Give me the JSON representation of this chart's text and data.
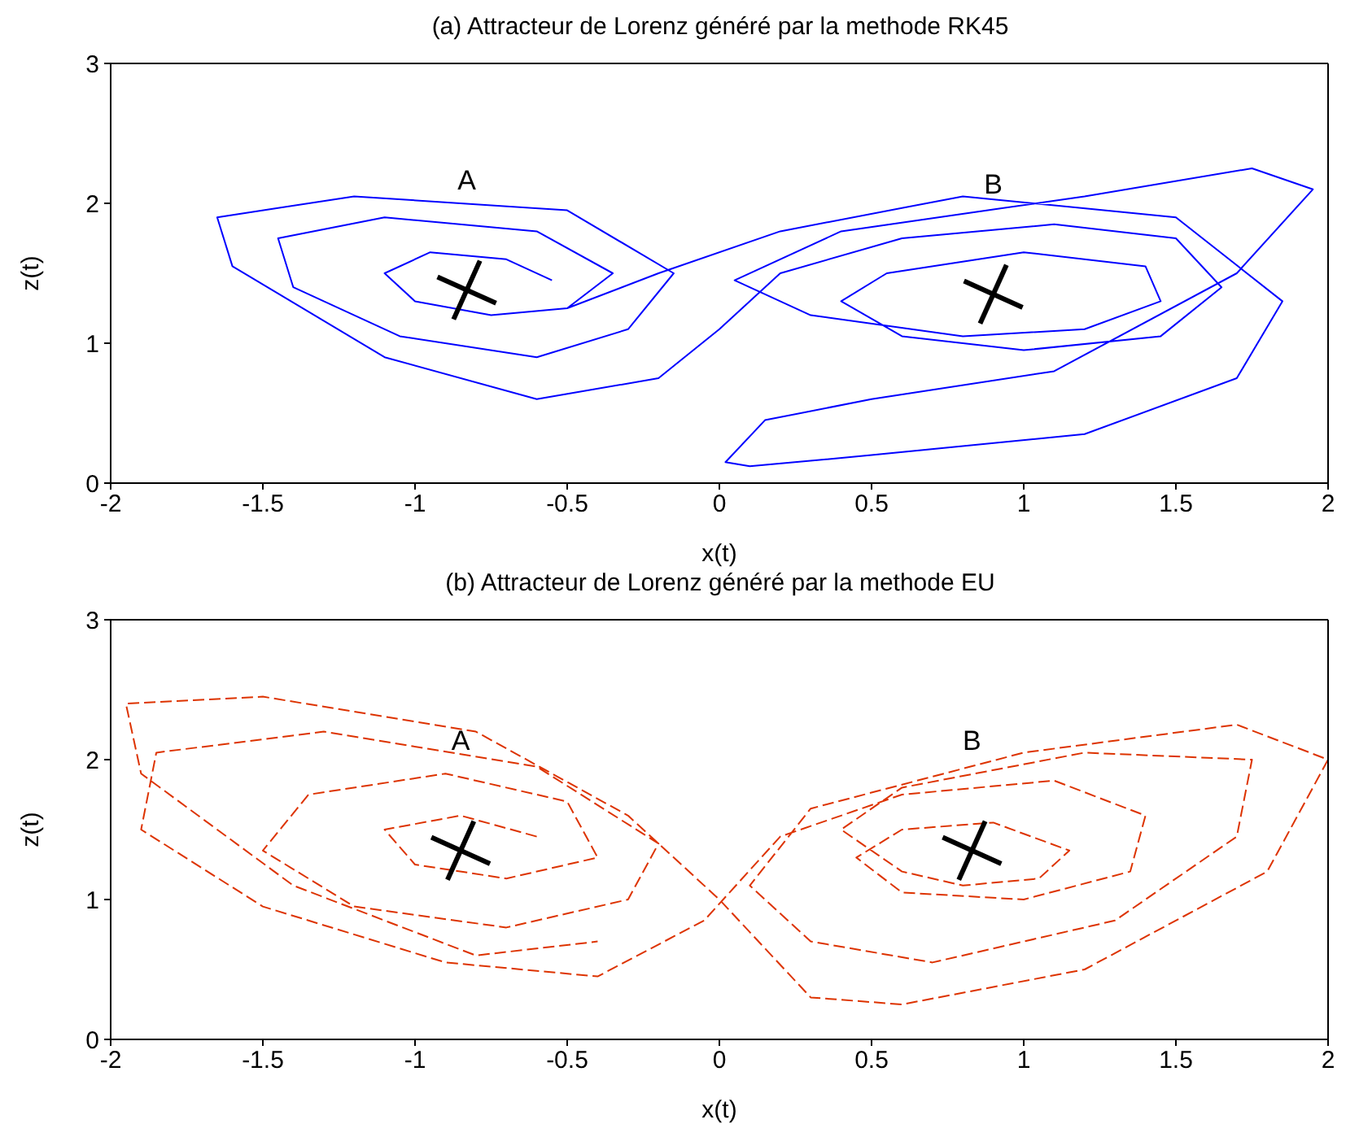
{
  "chart_data": [
    {
      "type": "line",
      "title": "(a) Attracteur de Lorenz généré par la methode RK45",
      "xlabel": "x(t)",
      "ylabel": "z(t)",
      "xlim": [
        -2,
        2
      ],
      "ylim": [
        0,
        3
      ],
      "xticks": [
        -2,
        -1.5,
        -1,
        -0.5,
        0,
        0.5,
        1,
        1.5,
        2
      ],
      "yticks": [
        0,
        1,
        2,
        3
      ],
      "series": [
        {
          "color": "#0000ff",
          "line_style": "solid",
          "x": [
            -0.55,
            -0.7,
            -0.95,
            -1.1,
            -1.0,
            -0.75,
            -0.5,
            -0.35,
            -0.6,
            -1.1,
            -1.45,
            -1.4,
            -1.05,
            -0.6,
            -0.3,
            -0.15,
            -0.5,
            -1.2,
            -1.65,
            -1.6,
            -1.1,
            -0.6,
            -0.2,
            0.0,
            0.2,
            0.6,
            1.1,
            1.5,
            1.65,
            1.45,
            1.0,
            0.6,
            0.4,
            0.55,
            1.0,
            1.4,
            1.45,
            1.2,
            0.8,
            0.3,
            0.05,
            0.4,
            1.2,
            1.75,
            1.95,
            1.7,
            1.1,
            0.5,
            0.15,
            0.02,
            0.1,
            0.5,
            1.2,
            1.7,
            1.85,
            1.5,
            0.8,
            0.2,
            -0.2,
            -0.5
          ],
          "values": [
            1.45,
            1.6,
            1.65,
            1.5,
            1.3,
            1.2,
            1.25,
            1.5,
            1.8,
            1.9,
            1.75,
            1.4,
            1.05,
            0.9,
            1.1,
            1.5,
            1.95,
            2.05,
            1.9,
            1.55,
            0.9,
            0.6,
            0.75,
            1.1,
            1.5,
            1.75,
            1.85,
            1.75,
            1.4,
            1.05,
            0.95,
            1.05,
            1.3,
            1.5,
            1.65,
            1.55,
            1.3,
            1.1,
            1.05,
            1.2,
            1.45,
            1.8,
            2.05,
            2.25,
            2.1,
            1.5,
            0.8,
            0.6,
            0.45,
            0.15,
            0.12,
            0.2,
            0.35,
            0.75,
            1.3,
            1.9,
            2.05,
            1.8,
            1.5,
            1.25
          ]
        },
        {
          "type": "scatter",
          "color": "#000000",
          "marker": "cross",
          "x": [
            -0.83,
            0.9
          ],
          "values": [
            1.38,
            1.35
          ]
        }
      ],
      "annotations": [
        "A",
        "B"
      ]
    },
    {
      "type": "line",
      "title": "(b) Attracteur de Lorenz généré par la methode EU",
      "xlabel": "x(t)",
      "ylabel": "z(t)",
      "xlim": [
        -2,
        2
      ],
      "ylim": [
        0,
        3
      ],
      "xticks": [
        -2,
        -1.5,
        -1,
        -0.5,
        0,
        0.5,
        1,
        1.5,
        2
      ],
      "yticks": [
        0,
        1,
        2,
        3
      ],
      "series": [
        {
          "color": "#dd3300",
          "line_style": "dashed",
          "x": [
            -0.6,
            -0.85,
            -1.1,
            -1.0,
            -0.7,
            -0.4,
            -0.5,
            -0.9,
            -1.35,
            -1.5,
            -1.2,
            -0.7,
            -0.3,
            -0.2,
            -0.6,
            -1.3,
            -1.85,
            -1.9,
            -1.5,
            -0.9,
            -0.4,
            -0.05,
            0.2,
            0.6,
            1.1,
            1.4,
            1.35,
            1.0,
            0.6,
            0.45,
            0.6,
            0.9,
            1.15,
            1.05,
            0.8,
            0.6,
            0.4,
            0.6,
            1.2,
            1.75,
            1.7,
            1.3,
            0.7,
            0.3,
            0.1,
            0.3,
            1.0,
            1.7,
            2.0,
            1.8,
            1.2,
            0.6,
            0.3,
            0.0,
            -0.3,
            -0.8,
            -1.5,
            -1.95,
            -1.9,
            -1.4,
            -0.8,
            -0.4
          ],
          "values": [
            1.45,
            1.6,
            1.5,
            1.25,
            1.15,
            1.3,
            1.7,
            1.9,
            1.75,
            1.35,
            0.95,
            0.8,
            1.0,
            1.4,
            1.95,
            2.2,
            2.05,
            1.5,
            0.95,
            0.55,
            0.45,
            0.85,
            1.45,
            1.75,
            1.85,
            1.6,
            1.2,
            1.0,
            1.05,
            1.3,
            1.5,
            1.55,
            1.35,
            1.15,
            1.1,
            1.2,
            1.5,
            1.8,
            2.05,
            2.0,
            1.45,
            0.85,
            0.55,
            0.7,
            1.1,
            1.65,
            2.05,
            2.25,
            2.0,
            1.2,
            0.5,
            0.25,
            0.3,
            1.0,
            1.6,
            2.2,
            2.45,
            2.4,
            1.9,
            1.1,
            0.6,
            0.7
          ]
        },
        {
          "type": "scatter",
          "color": "#000000",
          "marker": "cross",
          "x": [
            -0.85,
            0.83
          ],
          "values": [
            1.35,
            1.35
          ]
        }
      ],
      "annotations": [
        "A",
        "B"
      ]
    }
  ]
}
